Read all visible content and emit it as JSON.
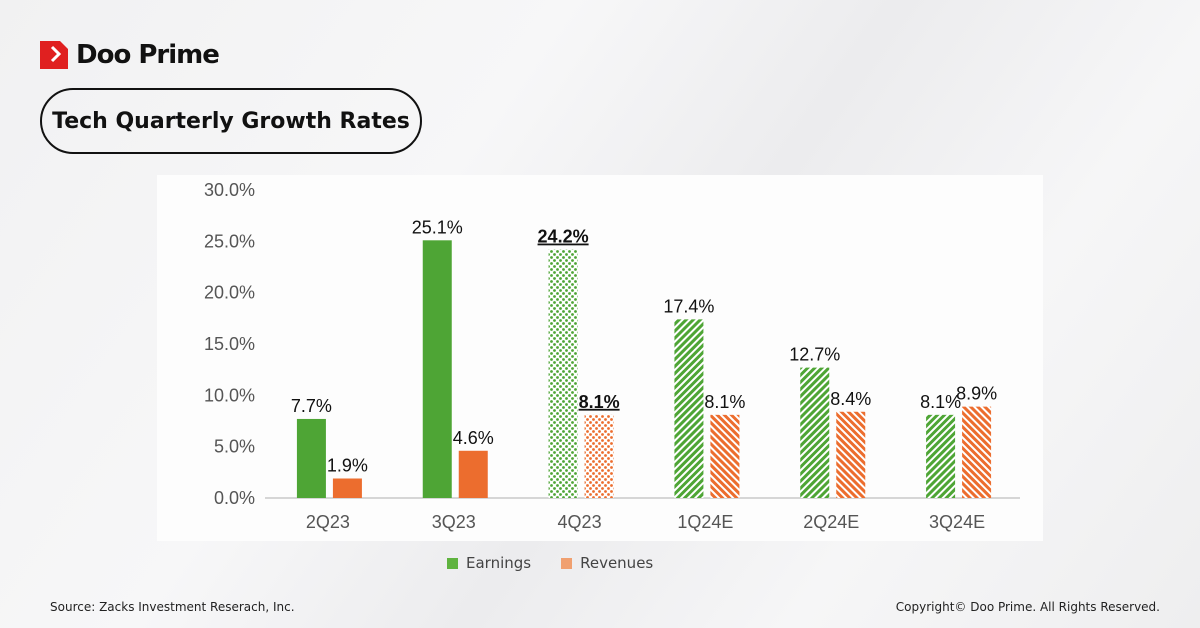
{
  "brand": {
    "name": "Doo Prime",
    "color": "#e02020"
  },
  "title": "Tech Quarterly Growth Rates",
  "chart_data": {
    "type": "bar",
    "title": "",
    "categories": [
      "2Q23",
      "3Q23",
      "4Q23",
      "1Q24E",
      "2Q24E",
      "3Q24E"
    ],
    "series": [
      {
        "name": "Earnings",
        "color": "#4ea535",
        "values": [
          7.7,
          25.1,
          24.2,
          17.4,
          12.7,
          8.1
        ],
        "labels": [
          "7.7%",
          "25.1%",
          "24.2%",
          "17.4%",
          "12.7%",
          "8.1%"
        ],
        "fill": [
          "solid",
          "solid",
          "dotted",
          "hatched",
          "hatched",
          "hatched"
        ]
      },
      {
        "name": "Revenues",
        "color": "#ec6d2e",
        "values": [
          1.9,
          4.6,
          8.1,
          8.1,
          8.4,
          8.9
        ],
        "labels": [
          "1.9%",
          "4.6%",
          "8.1%",
          "8.1%",
          "8.4%",
          "8.9%"
        ],
        "fill": [
          "solid",
          "solid",
          "dotted",
          "hatched",
          "hatched",
          "hatched"
        ]
      }
    ],
    "underlined_labels_category": "4Q23",
    "yticks": [
      "0.0%",
      "5.0%",
      "10.0%",
      "15.0%",
      "20.0%",
      "25.0%",
      "30.0%"
    ],
    "ylim": [
      0,
      30
    ],
    "grid": false,
    "legend": "bottom"
  },
  "legend": {
    "earnings": "Earnings",
    "revenues": "Revenues",
    "earnings_color": "#5fb33f",
    "revenues_color": "#f0a070"
  },
  "footer": {
    "source": "Source: Zacks Investment Reserach, Inc.",
    "copyright": "Copyright© Doo Prime. All Rights Reserved."
  }
}
